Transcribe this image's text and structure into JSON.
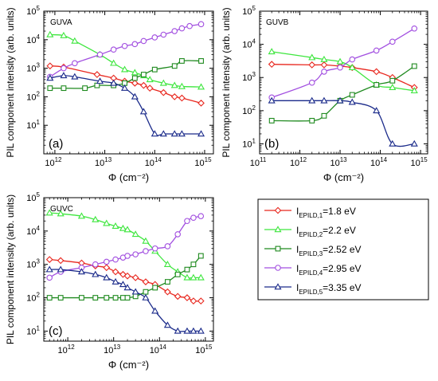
{
  "figure": {
    "shared_ylabel": "PIL component intensity (arb. units)",
    "shared_xlabel": "Φ (cm⁻²)",
    "legend": [
      {
        "prefix": "I",
        "sub": "EPILD,1",
        "suffix": "=1.8 eV",
        "color": "#e8271e",
        "marker": "diamond"
      },
      {
        "prefix": "I",
        "sub": "EPILD,2",
        "suffix": "=2.2 eV",
        "color": "#3ee63e",
        "marker": "triangle"
      },
      {
        "prefix": "I",
        "sub": "EPILD,3",
        "suffix": "=2.52 eV",
        "color": "#1f8a1f",
        "marker": "square"
      },
      {
        "prefix": "I",
        "sub": "EPILD,4",
        "suffix": "=2.95 eV",
        "color": "#a24fe0",
        "marker": "circle"
      },
      {
        "prefix": "I",
        "sub": "EPILD,5",
        "suffix": "=3.35 eV",
        "color": "#1a2a8a",
        "marker": "triangle"
      }
    ]
  },
  "chart_data": [
    {
      "type": "line",
      "title": "GUVA",
      "panel_label": "(a)",
      "xlabel": "Φ (cm⁻²)",
      "ylabel": "PIL component intensity (arb. units)",
      "xscale": "log",
      "yscale": "log",
      "xlim": [
        600000000000.0,
        1500000000000000.0
      ],
      "ylim": [
        1,
        100000
      ],
      "xticks": [
        {
          "v": 1000000000000.0,
          "b": "10",
          "e": "12"
        },
        {
          "v": 10000000000000.0,
          "b": "10",
          "e": "13"
        },
        {
          "v": 100000000000000.0,
          "b": "10",
          "e": "14"
        },
        {
          "v": 1000000000000000.0,
          "b": "10",
          "e": "15"
        }
      ],
      "yticks": [
        {
          "v": 10,
          "b": "10",
          "e": "1"
        },
        {
          "v": 100,
          "b": "10",
          "e": "2"
        },
        {
          "v": 1000,
          "b": "10",
          "e": "3"
        },
        {
          "v": 10000,
          "b": "10",
          "e": "4"
        },
        {
          "v": 100000,
          "b": "10",
          "e": "5"
        }
      ],
      "series": [
        {
          "name": "I_EPILD,1=1.8 eV",
          "color": "#e8271e",
          "marker": "diamond",
          "x": [
            800000000000.0,
            1500000000000.0,
            7000000000000.0,
            15000000000000.0,
            25000000000000.0,
            40000000000000.0,
            60000000000000.0,
            80000000000000.0,
            150000000000000.0,
            250000000000000.0,
            350000000000000.0,
            850000000000000.0
          ],
          "y": [
            1200,
            1100,
            600,
            450,
            350,
            300,
            250,
            200,
            140,
            100,
            90,
            60
          ]
        },
        {
          "name": "I_EPILD,2=2.2 eV",
          "color": "#3ee63e",
          "marker": "triangle",
          "x": [
            800000000000.0,
            1500000000000.0,
            2500000000000.0,
            8000000000000.0,
            15000000000000.0,
            25000000000000.0,
            40000000000000.0,
            60000000000000.0,
            80000000000000.0,
            150000000000000.0,
            250000000000000.0,
            350000000000000.0,
            850000000000000.0
          ],
          "y": [
            15000,
            14000,
            9000,
            3000,
            1500,
            900,
            700,
            550,
            400,
            300,
            250,
            230,
            220
          ]
        },
        {
          "name": "I_EPILD,3=2.52 eV",
          "color": "#1f8a1f",
          "marker": "square",
          "x": [
            800000000000.0,
            1500000000000.0,
            4000000000000.0,
            7000000000000.0,
            15000000000000.0,
            25000000000000.0,
            40000000000000.0,
            60000000000000.0,
            100000000000000.0,
            250000000000000.0,
            350000000000000.0,
            850000000000000.0
          ],
          "y": [
            200,
            200,
            200,
            250,
            250,
            300,
            450,
            600,
            900,
            1200,
            1800,
            1800
          ]
        },
        {
          "name": "I_EPILD,4=2.95 eV",
          "color": "#a24fe0",
          "marker": "circle",
          "x": [
            800000000000.0,
            1500000000000.0,
            2500000000000.0,
            8000000000000.0,
            15000000000000.0,
            25000000000000.0,
            40000000000000.0,
            60000000000000.0,
            100000000000000.0,
            150000000000000.0,
            250000000000000.0,
            350000000000000.0,
            500000000000000.0,
            850000000000000.0
          ],
          "y": [
            500,
            1000,
            1500,
            3000,
            4500,
            6000,
            7000,
            9000,
            12000,
            15000,
            20000,
            25000,
            30000,
            35000
          ]
        },
        {
          "name": "I_EPILD,5=3.35 eV",
          "color": "#1a2a8a",
          "marker": "triangle",
          "x": [
            800000000000.0,
            1500000000000.0,
            2500000000000.0,
            8000000000000.0,
            15000000000000.0,
            25000000000000.0,
            40000000000000.0,
            60000000000000.0,
            100000000000000.0,
            150000000000000.0,
            250000000000000.0,
            350000000000000.0,
            850000000000000.0
          ],
          "y": [
            450,
            550,
            500,
            350,
            300,
            200,
            100,
            30,
            5,
            5,
            5,
            5,
            5
          ]
        }
      ]
    },
    {
      "type": "line",
      "title": "GUVB",
      "panel_label": "(b)",
      "xlabel": "Φ (cm⁻²)",
      "ylabel": "PIL component intensity (arb. units)",
      "xscale": "log",
      "yscale": "log",
      "xlim": [
        100000000000.0,
        1500000000000000.0
      ],
      "ylim": [
        5,
        100000
      ],
      "xticks": [
        {
          "v": 100000000000.0,
          "b": "10",
          "e": "11"
        },
        {
          "v": 1000000000000.0,
          "b": "10",
          "e": "12"
        },
        {
          "v": 10000000000000.0,
          "b": "10",
          "e": "13"
        },
        {
          "v": 100000000000000.0,
          "b": "10",
          "e": "14"
        },
        {
          "v": 1000000000000000.0,
          "b": "10",
          "e": "15"
        }
      ],
      "yticks": [
        {
          "v": 10,
          "b": "10",
          "e": "1"
        },
        {
          "v": 100,
          "b": "10",
          "e": "2"
        },
        {
          "v": 1000,
          "b": "10",
          "e": "3"
        },
        {
          "v": 10000,
          "b": "10",
          "e": "4"
        },
        {
          "v": 100000,
          "b": "10",
          "e": "5"
        }
      ],
      "series": [
        {
          "name": "I_EPILD,1=1.8 eV",
          "color": "#e8271e",
          "marker": "diamond",
          "x": [
            200000000000.0,
            2000000000000.0,
            4000000000000.0,
            10000000000000.0,
            20000000000000.0,
            80000000000000.0,
            200000000000000.0,
            700000000000000.0
          ],
          "y": [
            2500,
            2400,
            2400,
            2200,
            2000,
            1500,
            1000,
            500
          ]
        },
        {
          "name": "I_EPILD,2=2.2 eV",
          "color": "#3ee63e",
          "marker": "triangle",
          "x": [
            200000000000.0,
            2000000000000.0,
            4000000000000.0,
            10000000000000.0,
            20000000000000.0,
            80000000000000.0,
            200000000000000.0,
            700000000000000.0
          ],
          "y": [
            6000,
            4000,
            3500,
            3000,
            2000,
            600,
            500,
            400
          ]
        },
        {
          "name": "I_EPILD,3=2.52 eV",
          "color": "#1f8a1f",
          "marker": "square",
          "x": [
            200000000000.0,
            2000000000000.0,
            4000000000000.0,
            10000000000000.0,
            20000000000000.0,
            80000000000000.0,
            200000000000000.0,
            700000000000000.0
          ],
          "y": [
            50,
            50,
            70,
            200,
            300,
            600,
            800,
            2200
          ]
        },
        {
          "name": "I_EPILD,4=2.95 eV",
          "color": "#a24fe0",
          "marker": "circle",
          "x": [
            200000000000.0,
            2000000000000.0,
            4000000000000.0,
            10000000000000.0,
            20000000000000.0,
            80000000000000.0,
            200000000000000.0,
            700000000000000.0
          ],
          "y": [
            250,
            700,
            1500,
            2000,
            3500,
            6500,
            12000,
            30000
          ]
        },
        {
          "name": "I_EPILD,5=3.35 eV",
          "color": "#1a2a8a",
          "marker": "triangle",
          "x": [
            200000000000.0,
            2000000000000.0,
            4000000000000.0,
            10000000000000.0,
            20000000000000.0,
            80000000000000.0,
            200000000000000.0,
            700000000000000.0
          ],
          "y": [
            200,
            200,
            200,
            200,
            180,
            100,
            10,
            10
          ]
        }
      ]
    },
    {
      "type": "line",
      "title": "GUVC",
      "panel_label": "(c)",
      "xlabel": "Φ (cm⁻²)",
      "ylabel": "PIL component intensity (arb. units)",
      "xscale": "log",
      "yscale": "log",
      "xlim": [
        300000000000.0,
        1500000000000000.0
      ],
      "ylim": [
        5,
        100000
      ],
      "xticks": [
        {
          "v": 1000000000000.0,
          "b": "10",
          "e": "12"
        },
        {
          "v": 10000000000000.0,
          "b": "10",
          "e": "13"
        },
        {
          "v": 100000000000000.0,
          "b": "10",
          "e": "14"
        },
        {
          "v": 1000000000000000.0,
          "b": "10",
          "e": "15"
        }
      ],
      "yticks": [
        {
          "v": 10,
          "b": "10",
          "e": "1"
        },
        {
          "v": 100,
          "b": "10",
          "e": "2"
        },
        {
          "v": 1000,
          "b": "10",
          "e": "3"
        },
        {
          "v": 10000,
          "b": "10",
          "e": "4"
        },
        {
          "v": 100000,
          "b": "10",
          "e": "5"
        }
      ],
      "series": [
        {
          "name": "I_EPILD,1=1.8 eV",
          "color": "#e8271e",
          "marker": "diamond",
          "x": [
            400000000000.0,
            700000000000.0,
            2000000000000.0,
            4000000000000.0,
            7000000000000.0,
            11000000000000.0,
            16000000000000.0,
            20000000000000.0,
            30000000000000.0,
            50000000000000.0,
            80000000000000.0,
            150000000000000.0,
            250000000000000.0,
            400000000000000.0,
            550000000000000.0,
            800000000000000.0
          ],
          "y": [
            1400,
            1300,
            1100,
            900,
            800,
            600,
            500,
            450,
            400,
            300,
            250,
            150,
            110,
            100,
            80,
            80
          ]
        },
        {
          "name": "I_EPILD,2=2.2 eV",
          "color": "#3ee63e",
          "marker": "triangle",
          "x": [
            400000000000.0,
            700000000000.0,
            2000000000000.0,
            4000000000000.0,
            7000000000000.0,
            11000000000000.0,
            16000000000000.0,
            20000000000000.0,
            30000000000000.0,
            50000000000000.0,
            80000000000000.0,
            150000000000000.0,
            250000000000000.0,
            400000000000000.0,
            550000000000000.0,
            800000000000000.0
          ],
          "y": [
            35000,
            33000,
            28000,
            22000,
            17000,
            14000,
            12000,
            11000,
            8000,
            5000,
            2500,
            1000,
            600,
            400,
            400,
            400
          ]
        },
        {
          "name": "I_EPILD,3=2.52 eV",
          "color": "#1f8a1f",
          "marker": "square",
          "x": [
            400000000000.0,
            700000000000.0,
            2000000000000.0,
            4000000000000.0,
            7000000000000.0,
            11000000000000.0,
            16000000000000.0,
            20000000000000.0,
            30000000000000.0,
            50000000000000.0,
            80000000000000.0,
            150000000000000.0,
            250000000000000.0,
            400000000000000.0,
            550000000000000.0,
            800000000000000.0
          ],
          "y": [
            100,
            100,
            100,
            100,
            100,
            100,
            100,
            100,
            110,
            150,
            200,
            300,
            500,
            700,
            1000,
            1800
          ]
        },
        {
          "name": "I_EPILD,4=2.95 eV",
          "color": "#a24fe0",
          "marker": "circle",
          "x": [
            400000000000.0,
            700000000000.0,
            2000000000000.0,
            4000000000000.0,
            7000000000000.0,
            11000000000000.0,
            16000000000000.0,
            20000000000000.0,
            30000000000000.0,
            50000000000000.0,
            80000000000000.0,
            150000000000000.0,
            250000000000000.0,
            400000000000000.0,
            550000000000000.0,
            800000000000000.0
          ],
          "y": [
            400,
            600,
            800,
            1000,
            1200,
            1400,
            1600,
            1800,
            2000,
            2500,
            3000,
            3500,
            8000,
            20000,
            25000,
            28000
          ]
        },
        {
          "name": "I_EPILD,5=3.35 eV",
          "color": "#1a2a8a",
          "marker": "triangle",
          "x": [
            400000000000.0,
            700000000000.0,
            2000000000000.0,
            4000000000000.0,
            7000000000000.0,
            11000000000000.0,
            16000000000000.0,
            20000000000000.0,
            30000000000000.0,
            50000000000000.0,
            80000000000000.0,
            150000000000000.0,
            250000000000000.0,
            400000000000000.0,
            550000000000000.0,
            800000000000000.0
          ],
          "y": [
            700,
            700,
            600,
            500,
            400,
            300,
            250,
            200,
            150,
            100,
            40,
            15,
            10,
            10,
            10,
            10
          ]
        }
      ]
    }
  ]
}
